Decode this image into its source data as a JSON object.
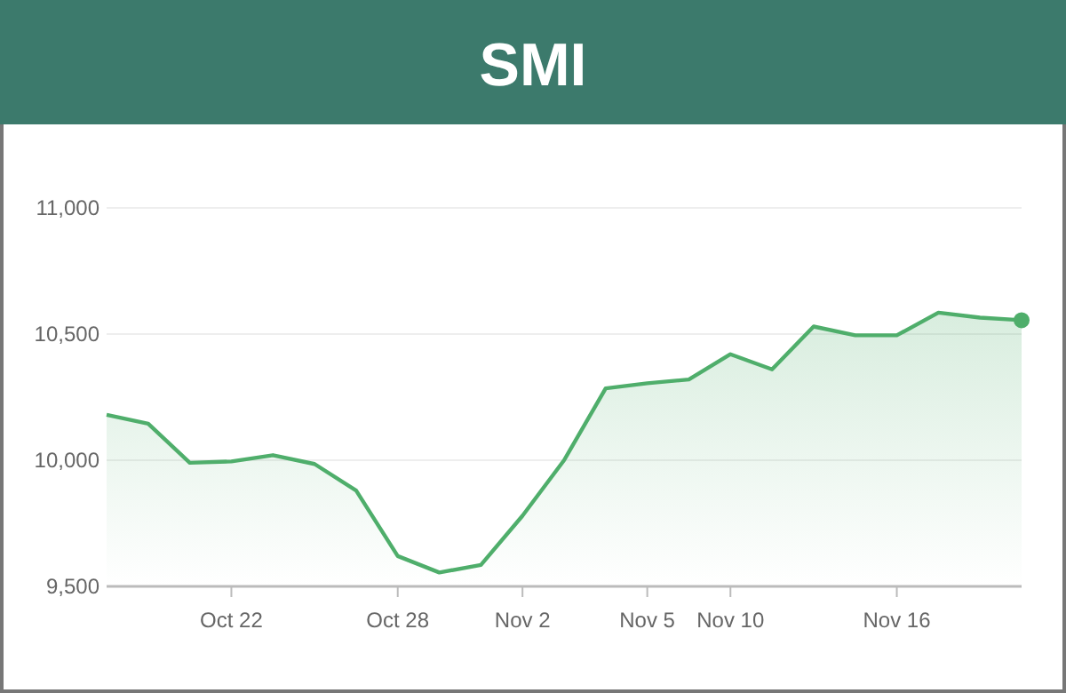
{
  "chart_data": {
    "type": "area",
    "title": "SMI",
    "categories": [
      null,
      null,
      null,
      "Oct 22",
      null,
      null,
      null,
      "Oct 28",
      null,
      null,
      "Nov 2",
      null,
      null,
      "Nov 5",
      null,
      "Nov 10",
      null,
      null,
      null,
      "Nov 16",
      null,
      null,
      null
    ],
    "series": [
      {
        "color": "#4fae6b",
        "values": [
          10180,
          10145,
          9990,
          9995,
          10020,
          9985,
          9880,
          9620,
          9555,
          9585,
          9780,
          10000,
          10285,
          10305,
          10320,
          10420,
          10360,
          10530,
          10495,
          10495,
          10585,
          10565,
          10555
        ]
      }
    ],
    "ylim": [
      9500,
      11000
    ],
    "yticks": [
      {
        "value": 9500,
        "label": "9,500"
      },
      {
        "value": 10000,
        "label": "10,000"
      },
      {
        "value": 10500,
        "label": "10,500"
      },
      {
        "value": 11000,
        "label": "11,000"
      }
    ],
    "grid": "y",
    "marker": "none",
    "line_style": "solid"
  }
}
